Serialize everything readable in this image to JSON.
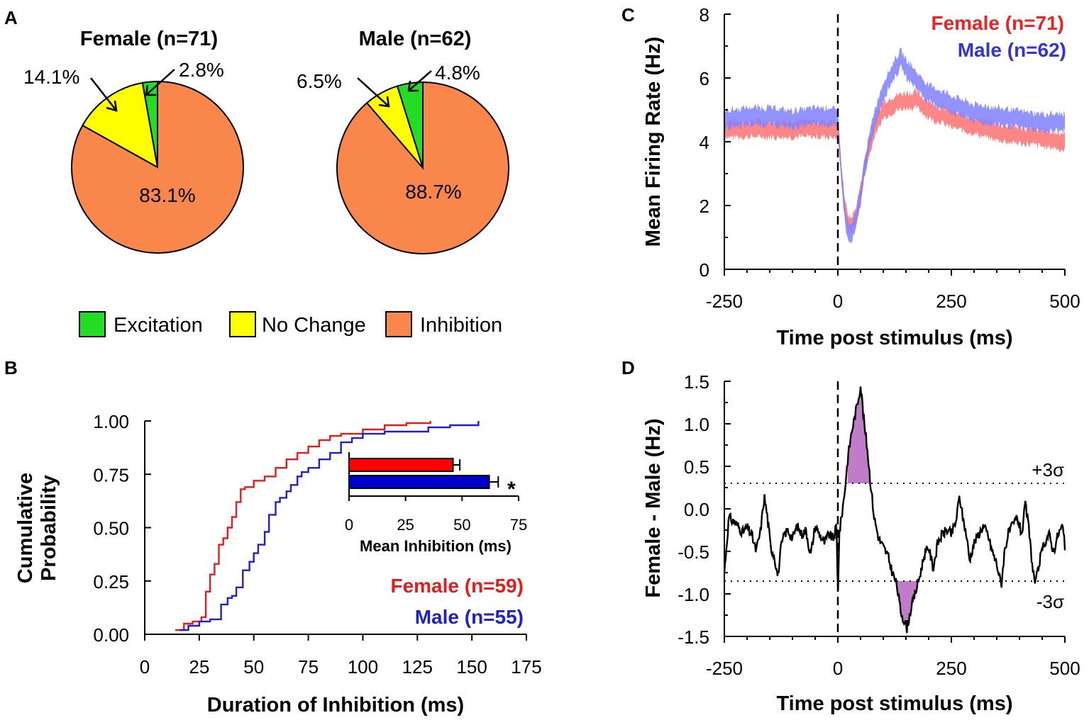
{
  "chart_data": [
    {
      "panel": "A",
      "type": "pie",
      "pies": [
        {
          "title": "Female (n=71)",
          "slices": [
            {
              "label": "Excitation",
              "value": 2.8,
              "text": "2.8%",
              "color": "#22dd22"
            },
            {
              "label": "No Change",
              "value": 14.1,
              "text": "14.1%",
              "color": "#ffff00"
            },
            {
              "label": "Inhibition",
              "value": 83.1,
              "text": "83.1%",
              "color": "#f9874b"
            }
          ]
        },
        {
          "title": "Male (n=62)",
          "slices": [
            {
              "label": "Excitation",
              "value": 4.8,
              "text": "4.8%",
              "color": "#22dd22"
            },
            {
              "label": "No Change",
              "value": 6.5,
              "text": "6.5%",
              "color": "#ffff00"
            },
            {
              "label": "Inhibition",
              "value": 88.7,
              "text": "88.7%",
              "color": "#f9874b"
            }
          ]
        }
      ],
      "legend": [
        {
          "label": "Excitation",
          "color": "#22dd22"
        },
        {
          "label": "No Change",
          "color": "#ffff00"
        },
        {
          "label": "Inhibition",
          "color": "#f9874b"
        }
      ]
    },
    {
      "panel": "B",
      "type": "line",
      "xlabel": "Duration of Inhibition (ms)",
      "ylabel_line1": "Cumulative",
      "ylabel_line2": "Probability",
      "xlim": [
        0,
        175
      ],
      "ylim": [
        0,
        1
      ],
      "xticks": [
        "0",
        "25",
        "50",
        "75",
        "100",
        "125",
        "150",
        "175"
      ],
      "yticks": [
        "0.00",
        "0.25",
        "0.50",
        "0.75",
        "1.00"
      ],
      "series": [
        {
          "name": "Female (n=59)",
          "color": "#e51c1c",
          "x": [
            14,
            18,
            22,
            26,
            28,
            30,
            32,
            34,
            36,
            38,
            40,
            42,
            44,
            46,
            50,
            55,
            60,
            65,
            70,
            75,
            80,
            85,
            90,
            100,
            110,
            120,
            131
          ],
          "y": [
            0.02,
            0.05,
            0.06,
            0.08,
            0.2,
            0.28,
            0.33,
            0.42,
            0.45,
            0.5,
            0.55,
            0.62,
            0.68,
            0.69,
            0.72,
            0.74,
            0.78,
            0.82,
            0.85,
            0.88,
            0.91,
            0.93,
            0.94,
            0.96,
            0.98,
            0.99,
            1.0
          ]
        },
        {
          "name": "Male (n=55)",
          "color": "#1f1fcc",
          "x": [
            16,
            20,
            25,
            30,
            35,
            38,
            40,
            42,
            45,
            48,
            50,
            52,
            55,
            57,
            60,
            62,
            65,
            67,
            70,
            72,
            75,
            80,
            85,
            90,
            95,
            100,
            110,
            120,
            130,
            140,
            153
          ],
          "y": [
            0.02,
            0.04,
            0.06,
            0.07,
            0.14,
            0.17,
            0.18,
            0.22,
            0.3,
            0.34,
            0.38,
            0.42,
            0.48,
            0.56,
            0.62,
            0.64,
            0.67,
            0.7,
            0.74,
            0.76,
            0.78,
            0.82,
            0.85,
            0.9,
            0.92,
            0.94,
            0.95,
            0.95,
            0.97,
            0.98,
            1.0
          ]
        }
      ],
      "inset": {
        "type": "bar",
        "xlabel": "Mean Inhibition (ms)",
        "xlim": [
          0,
          75
        ],
        "xticks": [
          "0",
          "25",
          "50",
          "75"
        ],
        "bars": [
          {
            "name": "Female",
            "value": 46,
            "error": 3,
            "color": "#ff0000"
          },
          {
            "name": "Male",
            "value": 62,
            "error": 4,
            "color": "#0000cc"
          }
        ],
        "annotation": "*"
      }
    },
    {
      "panel": "C",
      "type": "area",
      "xlabel": "Time post stimulus (ms)",
      "ylabel": "Mean Firing Rate (Hz)",
      "xlim": [
        -250,
        500
      ],
      "ylim": [
        0,
        8
      ],
      "xticks": [
        "-250",
        "0",
        "250",
        "500"
      ],
      "yticks": [
        "0",
        "2",
        "4",
        "6",
        "8"
      ],
      "stimulus_line_x": 0,
      "series": [
        {
          "name": "Female (n=71)",
          "color": "#ff8080",
          "label_color": "#ee2222",
          "x": [
            -250,
            -200,
            -150,
            -100,
            -50,
            -10,
            0,
            5,
            10,
            15,
            20,
            25,
            30,
            40,
            50,
            60,
            80,
            100,
            125,
            150,
            175,
            200,
            250,
            300,
            350,
            400,
            450,
            500
          ],
          "y": [
            4.4,
            4.4,
            4.4,
            4.4,
            4.4,
            4.4,
            4.3,
            3.5,
            2.7,
            2.0,
            1.6,
            1.4,
            1.4,
            1.7,
            2.4,
            3.3,
            4.4,
            5.0,
            5.2,
            5.3,
            5.3,
            5.0,
            4.7,
            4.5,
            4.3,
            4.2,
            4.1,
            4.0
          ],
          "halfwidth": 0.22
        },
        {
          "name": "Male (n=62)",
          "color": "#8080ff",
          "label_color": "#3333dd",
          "x": [
            -250,
            -200,
            -150,
            -100,
            -50,
            -10,
            0,
            5,
            10,
            15,
            20,
            25,
            30,
            40,
            50,
            60,
            80,
            100,
            125,
            140,
            150,
            175,
            200,
            250,
            300,
            350,
            400,
            450,
            500
          ],
          "y": [
            4.7,
            4.8,
            4.8,
            4.7,
            4.8,
            4.8,
            4.6,
            3.7,
            2.6,
            1.8,
            1.3,
            1.1,
            1.1,
            1.5,
            2.3,
            3.3,
            4.7,
            5.6,
            6.3,
            6.6,
            6.3,
            5.9,
            5.5,
            5.2,
            4.9,
            4.8,
            4.7,
            4.6,
            4.6
          ],
          "halfwidth": 0.24
        }
      ]
    },
    {
      "panel": "D",
      "type": "line",
      "xlabel": "Time post stimulus (ms)",
      "ylabel": "Female - Male (Hz)",
      "xlim": [
        -250,
        500
      ],
      "ylim": [
        -1.5,
        1.5
      ],
      "xticks": [
        "-250",
        "0",
        "250",
        "500"
      ],
      "yticks": [
        "-1.5",
        "-1.0",
        "-0.5",
        "0.0",
        "0.5",
        "1.0",
        "1.5"
      ],
      "stimulus_line_x": 0,
      "threshold_upper": 0.3,
      "threshold_lower": -0.85,
      "threshold_upper_label": "+3σ",
      "threshold_lower_label": "-3σ",
      "highlight_color": "#c07cc8",
      "series": [
        {
          "name": "Female - Male",
          "color": "#000000",
          "x": [
            -250,
            -240,
            -230,
            -220,
            -210,
            -200,
            -190,
            -180,
            -170,
            -162,
            -155,
            -148,
            -140,
            -132,
            -125,
            -118,
            -110,
            -100,
            -90,
            -80,
            -70,
            -60,
            -50,
            -40,
            -30,
            -20,
            -10,
            -3,
            0,
            3,
            8,
            15,
            22,
            30,
            38,
            45,
            50,
            53,
            58,
            65,
            72,
            80,
            90,
            100,
            110,
            120,
            130,
            138,
            145,
            152,
            160,
            170,
            180,
            190,
            200,
            210,
            220,
            230,
            240,
            250,
            260,
            268,
            275,
            283,
            290,
            300,
            310,
            320,
            330,
            340,
            350,
            360,
            367,
            375,
            385,
            395,
            405,
            413,
            420,
            428,
            435,
            445,
            455,
            465,
            475,
            485,
            495,
            500
          ],
          "y": [
            -0.75,
            -0.1,
            -0.15,
            -0.2,
            -0.28,
            -0.22,
            -0.3,
            -0.5,
            -0.25,
            0.15,
            -0.1,
            -0.45,
            -0.55,
            -0.8,
            -0.45,
            -0.3,
            -0.25,
            -0.35,
            -0.2,
            -0.3,
            -0.25,
            -0.55,
            -0.2,
            -0.3,
            -0.4,
            -0.3,
            -0.35,
            -0.2,
            -1.05,
            -0.3,
            -0.1,
            0.2,
            0.6,
            0.9,
            1.1,
            1.3,
            1.45,
            1.3,
            1.0,
            0.7,
            0.3,
            -0.1,
            -0.35,
            -0.45,
            -0.55,
            -0.75,
            -0.9,
            -1.2,
            -1.3,
            -1.4,
            -1.2,
            -1.0,
            -0.8,
            -0.55,
            -0.45,
            -0.7,
            -0.4,
            -0.3,
            -0.25,
            -0.3,
            -0.15,
            0.15,
            -0.1,
            -0.3,
            -0.6,
            -0.4,
            -0.3,
            -0.2,
            -0.3,
            -0.5,
            -0.65,
            -0.9,
            -0.5,
            -0.3,
            -0.2,
            -0.1,
            -0.3,
            0.05,
            -0.2,
            -0.65,
            -0.9,
            -0.6,
            -0.4,
            -0.3,
            -0.5,
            -0.3,
            -0.2,
            -0.45
          ]
        }
      ]
    }
  ]
}
